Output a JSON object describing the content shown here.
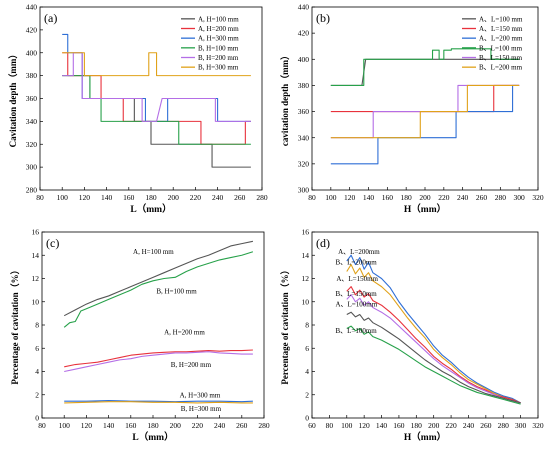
{
  "chart_data": [
    {
      "panel_label": "(a)",
      "type": "line",
      "xlabel": "L（mm）",
      "ylabel": "Cavitation depth（mm）",
      "xlim": [
        80,
        280
      ],
      "ylim": [
        280,
        440
      ],
      "xticks": [
        "80",
        "100",
        "120",
        "140",
        "160",
        "180",
        "200",
        "220",
        "240",
        "260",
        "280"
      ],
      "yticks": [
        "280",
        "300",
        "320",
        "340",
        "360",
        "380",
        "400",
        "420",
        "440"
      ],
      "legend_position": "top-right",
      "series": [
        {
          "name": "A, H=100 mm",
          "color": "#555555",
          "x": [
            100,
            125,
            125,
            135,
            135,
            165,
            165,
            180,
            180,
            235,
            235,
            270
          ],
          "y": [
            380,
            380,
            360,
            360,
            360,
            360,
            340,
            340,
            320,
            320,
            300,
            300
          ]
        },
        {
          "name": "A, H=200 mm",
          "color": "#e8323c",
          "x": [
            100,
            105,
            105,
            135,
            135,
            155,
            155,
            225,
            225,
            265,
            265,
            270
          ],
          "y": [
            400,
            400,
            380,
            380,
            360,
            360,
            340,
            340,
            320,
            320,
            340,
            340
          ]
        },
        {
          "name": "A, H=300 mm",
          "color": "#2f6fd6",
          "x": [
            100,
            105,
            105,
            118,
            118,
            175,
            175,
            195,
            195,
            240,
            240,
            270
          ],
          "y": [
            416,
            416,
            400,
            400,
            360,
            360,
            340,
            340,
            360,
            360,
            340,
            340
          ]
        },
        {
          "name": "B, H=100 mm",
          "color": "#27a14a",
          "x": [
            100,
            125,
            125,
            135,
            135,
            205,
            205,
            270
          ],
          "y": [
            380,
            380,
            360,
            360,
            340,
            340,
            320,
            320
          ]
        },
        {
          "name": "B, H=200 mm",
          "color": "#b46ee6",
          "x": [
            100,
            110,
            110,
            118,
            118,
            172,
            172,
            185,
            185,
            190,
            190,
            238,
            238,
            270
          ],
          "y": [
            380,
            380,
            400,
            400,
            360,
            360,
            340,
            340,
            340,
            360,
            360,
            360,
            340,
            340
          ]
        },
        {
          "name": "B, H=300 mm",
          "color": "#e0a21a",
          "x": [
            100,
            120,
            120,
            178,
            178,
            185,
            185,
            270
          ],
          "y": [
            400,
            400,
            380,
            380,
            400,
            400,
            380,
            380
          ]
        }
      ]
    },
    {
      "panel_label": "(b)",
      "type": "line",
      "xlabel": "H（mm）",
      "ylabel": "cavitation depth（mm）",
      "xlim": [
        80,
        320
      ],
      "ylim": [
        300,
        440
      ],
      "xticks": [
        "80",
        "100",
        "120",
        "140",
        "160",
        "180",
        "200",
        "220",
        "240",
        "260",
        "280",
        "300",
        "320"
      ],
      "yticks": [
        "300",
        "320",
        "340",
        "360",
        "380",
        "400",
        "420",
        "440"
      ],
      "legend_position": "top-right",
      "series": [
        {
          "name": "A、L=100 mm",
          "color": "#555555",
          "x": [
            100,
            133,
            133,
            137,
            137,
            200,
            200,
            300
          ],
          "y": [
            380,
            380,
            380,
            400,
            400,
            400,
            400,
            400
          ]
        },
        {
          "name": "A、L=150 mm",
          "color": "#e8323c",
          "x": [
            100,
            195,
            195,
            273,
            273,
            300
          ],
          "y": [
            360,
            360,
            360,
            360,
            380,
            380
          ]
        },
        {
          "name": "A、L=200 mm",
          "color": "#2f6fd6",
          "x": [
            100,
            150,
            150,
            233,
            233,
            293,
            293,
            300
          ],
          "y": [
            320,
            320,
            340,
            340,
            360,
            360,
            380,
            380
          ]
        },
        {
          "name": "B、L=100 mm",
          "color": "#27a14a",
          "x": [
            100,
            135,
            135,
            208,
            208,
            215,
            215,
            220,
            220,
            228,
            228,
            240,
            240,
            270,
            270,
            300
          ],
          "y": [
            380,
            380,
            400,
            400,
            407,
            407,
            400,
            400,
            407,
            407,
            408,
            408,
            408,
            408,
            400,
            400
          ]
        },
        {
          "name": "B、L=150 mm",
          "color": "#b46ee6",
          "x": [
            100,
            145,
            145,
            235,
            235,
            300
          ],
          "y": [
            340,
            340,
            360,
            360,
            380,
            380
          ]
        },
        {
          "name": "B、L=200 mm",
          "color": "#e0a21a",
          "x": [
            100,
            195,
            195,
            245,
            245,
            300
          ],
          "y": [
            340,
            340,
            360,
            360,
            380,
            380
          ]
        }
      ]
    },
    {
      "panel_label": "(c)",
      "type": "line",
      "xlabel": "L（mm）",
      "ylabel": "Percentage of cavitation（%）",
      "xlim": [
        80,
        280
      ],
      "ylim": [
        0,
        16
      ],
      "xticks": [
        "80",
        "100",
        "120",
        "140",
        "160",
        "180",
        "200",
        "220",
        "240",
        "260",
        "280"
      ],
      "yticks": [
        "0",
        "2",
        "4",
        "6",
        "8",
        "10",
        "12",
        "14",
        "16"
      ],
      "annotations": [
        {
          "text": "A, H=100 mm",
          "x": 162,
          "y": 14.1
        },
        {
          "text": "B, H=100 mm",
          "x": 183,
          "y": 10.7
        },
        {
          "text": "A, H=200 mm",
          "x": 190,
          "y": 7.2
        },
        {
          "text": "B, H=200 mm",
          "x": 196,
          "y": 4.4
        },
        {
          "text": "A, H=300 mm",
          "x": 204,
          "y": 1.75
        },
        {
          "text": "B, H=300 mm",
          "x": 205,
          "y": 0.6
        }
      ],
      "series": [
        {
          "name": "A, H=100 mm",
          "color": "#555555",
          "x": [
            100,
            110,
            120,
            130,
            140,
            150,
            160,
            170,
            180,
            190,
            200,
            210,
            220,
            230,
            240,
            250,
            260,
            270
          ],
          "y": [
            8.8,
            9.3,
            9.8,
            10.2,
            10.5,
            10.9,
            11.3,
            11.7,
            12.1,
            12.5,
            12.9,
            13.3,
            13.7,
            14.0,
            14.4,
            14.8,
            15.0,
            15.2
          ]
        },
        {
          "name": "B, H=100 mm",
          "color": "#27a14a",
          "x": [
            100,
            105,
            110,
            115,
            120,
            130,
            140,
            150,
            160,
            170,
            180,
            190,
            200,
            210,
            220,
            230,
            240,
            250,
            260,
            270
          ],
          "y": [
            7.8,
            8.2,
            8.3,
            9.2,
            9.4,
            9.8,
            10.2,
            10.6,
            11.0,
            11.5,
            11.8,
            12.0,
            12.1,
            12.6,
            13.0,
            13.3,
            13.6,
            13.8,
            14.0,
            14.3
          ]
        },
        {
          "name": "A, H=200 mm",
          "color": "#e8323c",
          "x": [
            100,
            110,
            120,
            130,
            140,
            150,
            160,
            170,
            180,
            190,
            200,
            210,
            220,
            230,
            240,
            250,
            260,
            270
          ],
          "y": [
            4.4,
            4.6,
            4.7,
            4.8,
            5.0,
            5.2,
            5.4,
            5.5,
            5.6,
            5.65,
            5.7,
            5.7,
            5.75,
            5.8,
            5.75,
            5.8,
            5.8,
            5.85
          ]
        },
        {
          "name": "B, H=200 mm",
          "color": "#b46ee6",
          "x": [
            100,
            110,
            120,
            130,
            140,
            150,
            160,
            170,
            180,
            190,
            200,
            210,
            220,
            230,
            240,
            250,
            260,
            270
          ],
          "y": [
            4.0,
            4.2,
            4.4,
            4.6,
            4.8,
            5.0,
            5.1,
            5.3,
            5.4,
            5.5,
            5.6,
            5.6,
            5.65,
            5.7,
            5.6,
            5.55,
            5.5,
            5.5
          ]
        },
        {
          "name": "A, H=300 mm",
          "color": "#2f6fd6",
          "x": [
            100,
            120,
            140,
            160,
            180,
            200,
            220,
            240,
            260,
            270
          ],
          "y": [
            1.45,
            1.45,
            1.5,
            1.45,
            1.45,
            1.4,
            1.45,
            1.45,
            1.4,
            1.45
          ]
        },
        {
          "name": "B, H=300 mm",
          "color": "#e0a21a",
          "x": [
            100,
            120,
            140,
            160,
            180,
            200,
            220,
            240,
            260,
            270
          ],
          "y": [
            1.3,
            1.35,
            1.4,
            1.4,
            1.35,
            1.35,
            1.3,
            1.35,
            1.3,
            1.3
          ]
        }
      ]
    },
    {
      "panel_label": "(d)",
      "type": "line",
      "xlabel": "H（mm）",
      "ylabel": "Percentage of cavitation（%）",
      "xlim": [
        60,
        320
      ],
      "ylim": [
        0,
        16
      ],
      "xticks": [
        "60",
        "80",
        "100",
        "120",
        "140",
        "160",
        "180",
        "200",
        "220",
        "240",
        "260",
        "280",
        "300",
        "320"
      ],
      "yticks": [
        "0",
        "2",
        "4",
        "6",
        "8",
        "10",
        "12",
        "14",
        "16"
      ],
      "annotations": [
        {
          "text": "A、L=200mm",
          "x": 90,
          "y": 14.1
        },
        {
          "text": "B、L=200mm",
          "x": 87,
          "y": 13.2
        },
        {
          "text": "A、L=150mm",
          "x": 88,
          "y": 11.8
        },
        {
          "text": "B、L=150mm",
          "x": 87,
          "y": 10.5
        },
        {
          "text": "A、L=100mm",
          "x": 87,
          "y": 9.6
        },
        {
          "text": "B、L=100mm",
          "x": 87,
          "y": 7.3
        }
      ],
      "series": [
        {
          "name": "A、L=200mm",
          "color": "#2f6fd6",
          "x": [
            100,
            105,
            110,
            115,
            120,
            125,
            130,
            140,
            150,
            160,
            170,
            180,
            190,
            200,
            210,
            220,
            230,
            240,
            250,
            260,
            270,
            280,
            290,
            300
          ],
          "y": [
            13.5,
            14.0,
            13.2,
            13.8,
            12.8,
            13.4,
            12.5,
            12.0,
            11.2,
            10.0,
            9.0,
            8.1,
            7.2,
            6.2,
            5.4,
            4.8,
            4.1,
            3.5,
            3.0,
            2.6,
            2.2,
            1.9,
            1.7,
            1.3
          ]
        },
        {
          "name": "B、L=200mm",
          "color": "#e0a21a",
          "x": [
            100,
            105,
            110,
            115,
            120,
            125,
            130,
            140,
            150,
            160,
            170,
            180,
            190,
            200,
            210,
            220,
            230,
            240,
            250,
            260,
            270,
            280,
            290,
            300
          ],
          "y": [
            12.6,
            13.2,
            12.4,
            12.9,
            12.1,
            12.5,
            11.8,
            11.3,
            10.6,
            9.6,
            8.6,
            7.7,
            6.9,
            5.9,
            5.2,
            4.6,
            3.9,
            3.3,
            2.9,
            2.5,
            2.1,
            1.8,
            1.6,
            1.3
          ]
        },
        {
          "name": "A、L=150mm",
          "color": "#e8323c",
          "x": [
            100,
            105,
            110,
            115,
            120,
            125,
            130,
            140,
            150,
            160,
            170,
            180,
            190,
            200,
            210,
            220,
            230,
            240,
            250,
            260,
            270,
            280,
            290,
            300
          ],
          "y": [
            10.9,
            11.3,
            10.6,
            11.0,
            10.4,
            10.7,
            10.1,
            9.7,
            9.1,
            8.4,
            7.6,
            6.8,
            6.1,
            5.3,
            4.7,
            4.2,
            3.6,
            3.1,
            2.7,
            2.4,
            2.0,
            1.8,
            1.6,
            1.3
          ]
        },
        {
          "name": "B、L=150mm",
          "color": "#b46ee6",
          "x": [
            100,
            105,
            110,
            115,
            120,
            125,
            130,
            140,
            150,
            160,
            170,
            180,
            190,
            200,
            210,
            220,
            230,
            240,
            250,
            260,
            270,
            280,
            290,
            300
          ],
          "y": [
            10.2,
            10.6,
            10.0,
            10.3,
            9.7,
            10.0,
            9.5,
            9.1,
            8.6,
            7.9,
            7.2,
            6.5,
            5.8,
            5.1,
            4.5,
            4.0,
            3.5,
            3.0,
            2.6,
            2.3,
            2.0,
            1.7,
            1.5,
            1.3
          ]
        },
        {
          "name": "A、L=100mm",
          "color": "#555555",
          "x": [
            100,
            105,
            110,
            115,
            120,
            125,
            130,
            140,
            150,
            160,
            170,
            180,
            190,
            200,
            210,
            220,
            230,
            240,
            250,
            260,
            270,
            280,
            290,
            300
          ],
          "y": [
            8.9,
            9.1,
            8.7,
            8.9,
            8.4,
            8.6,
            8.2,
            7.8,
            7.3,
            6.8,
            6.2,
            5.6,
            5.0,
            4.5,
            4.0,
            3.6,
            3.1,
            2.7,
            2.4,
            2.1,
            1.9,
            1.7,
            1.5,
            1.3
          ]
        },
        {
          "name": "B、L=100mm",
          "color": "#27a14a",
          "x": [
            100,
            105,
            110,
            115,
            120,
            125,
            130,
            140,
            150,
            160,
            170,
            180,
            190,
            200,
            210,
            220,
            230,
            240,
            250,
            260,
            270,
            280,
            290,
            300
          ],
          "y": [
            7.7,
            7.9,
            7.5,
            7.7,
            7.2,
            7.4,
            7.0,
            6.7,
            6.3,
            5.9,
            5.4,
            4.9,
            4.4,
            4.0,
            3.6,
            3.2,
            2.8,
            2.5,
            2.2,
            2.0,
            1.8,
            1.6,
            1.4,
            1.2
          ]
        }
      ]
    }
  ]
}
